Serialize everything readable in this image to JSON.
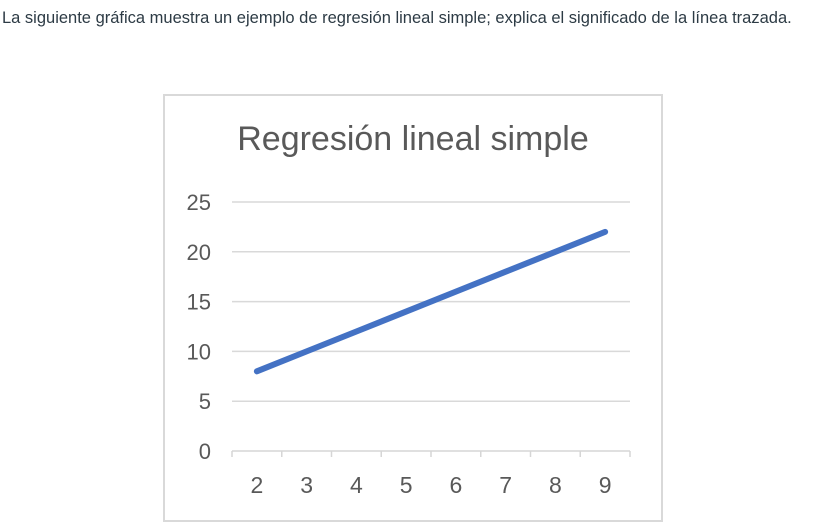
{
  "question": {
    "text": "La siguiente gráfica muestra un ejemplo de regresión lineal simple; explica el significado de la línea trazada."
  },
  "chart_data": {
    "type": "line",
    "title": "Regresión lineal simple",
    "categories": [
      "2",
      "3",
      "4",
      "5",
      "6",
      "7",
      "8",
      "9"
    ],
    "series": [
      {
        "values": [
          8,
          10,
          12,
          14,
          16,
          18,
          20,
          22
        ],
        "color": "#4472C4"
      }
    ],
    "xlabel": "",
    "ylabel": "",
    "ylim": [
      0,
      25
    ],
    "yticks": [
      0,
      5,
      10,
      15,
      20,
      25
    ],
    "grid": true,
    "legend": "none",
    "colors": {
      "line": "#4472C4",
      "grid": "#D9D9D9",
      "axis": "#D6D6D6",
      "tick_label": "#595959",
      "title": "#595959",
      "frame_border": "#D9D9D9",
      "question_text": "#2D3B45"
    }
  }
}
